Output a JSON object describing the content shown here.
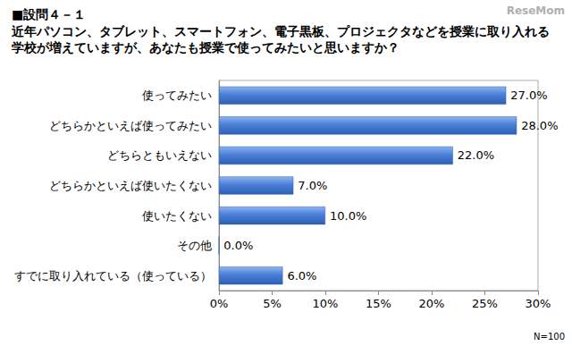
{
  "chart_data": {
    "type": "bar",
    "orientation": "horizontal",
    "title": "■設問４－１",
    "subtitle": "近年パソコン、タブレット、スマートフォン、電子黒板、プロジェクタなどを授業に取り入れる\n学校が増えていますが、あなたも授業で使ってみたいと思いますか？",
    "categories": [
      "使ってみたい",
      "どちらかといえば使ってみたい",
      "どちらともいえない",
      "どちらかといえば使いたくない",
      "使いたくない",
      "その他",
      "すでに取り入れている（使っている）"
    ],
    "values": [
      27.0,
      28.0,
      22.0,
      7.0,
      10.0,
      0.0,
      6.0
    ],
    "value_labels": [
      "27.0%",
      "28.0%",
      "22.0%",
      "7.0%",
      "10.0%",
      "0.0%",
      "6.0%"
    ],
    "data_labels": true,
    "color": "#4a7fd8",
    "xlim": [
      0,
      30
    ],
    "xticks": [
      {
        "value": 0,
        "label": "0%"
      },
      {
        "value": 5,
        "label": "5%"
      },
      {
        "value": 10,
        "label": "10%"
      },
      {
        "value": 15,
        "label": "15%"
      },
      {
        "value": 20,
        "label": "20%"
      },
      {
        "value": 25,
        "label": "25%"
      },
      {
        "value": 30,
        "label": "30%"
      }
    ],
    "grid": false,
    "annotations": [
      "N=100",
      "ReseMom"
    ]
  }
}
